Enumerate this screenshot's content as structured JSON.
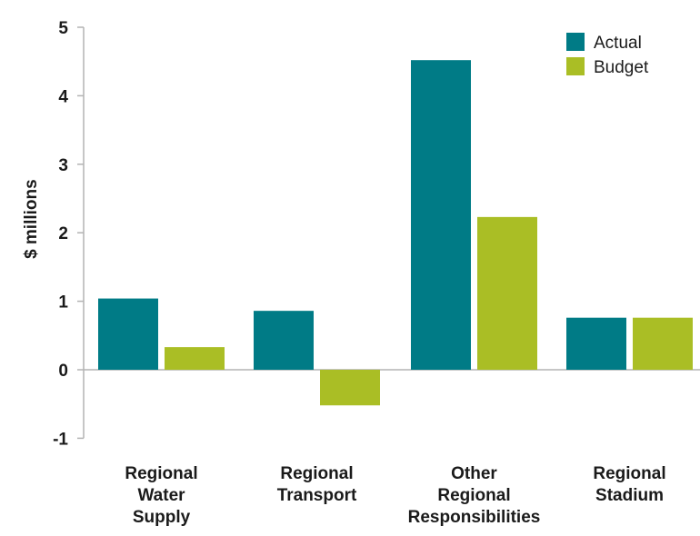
{
  "chart_data": {
    "type": "bar",
    "title": "",
    "xlabel": "",
    "ylabel": "$ millions",
    "ylim": [
      -1,
      5
    ],
    "yticks": [
      5,
      4,
      3,
      2,
      1,
      0,
      -1
    ],
    "grid": false,
    "legend_position": "top-right",
    "categories": [
      [
        "Regional",
        "Water",
        "Supply"
      ],
      [
        "Regional",
        "Transport"
      ],
      [
        "Other",
        "Regional",
        "Responsibilities"
      ],
      [
        "Regional",
        "Stadium"
      ]
    ],
    "series": [
      {
        "name": "Actual",
        "color": "#007b86",
        "values": [
          1.04,
          0.86,
          4.52,
          0.76
        ]
      },
      {
        "name": "Budget",
        "color": "#aabe25",
        "values": [
          0.33,
          -0.52,
          2.23,
          0.76
        ]
      }
    ]
  }
}
